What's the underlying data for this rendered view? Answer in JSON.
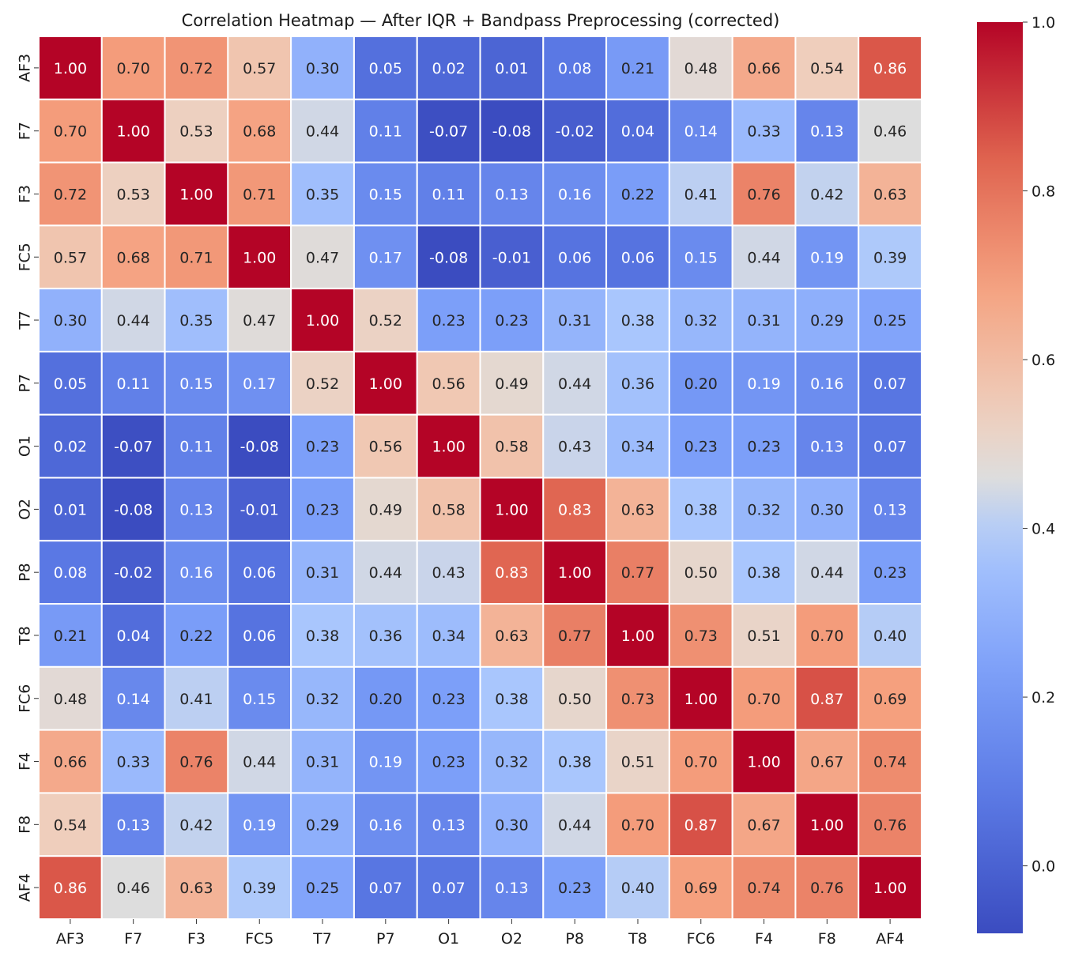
{
  "chart_data": {
    "type": "heatmap",
    "title": "Correlation Heatmap — After IQR + Bandpass Preprocessing (corrected)",
    "xlabel": "",
    "ylabel": "",
    "x_labels": [
      "AF3",
      "F7",
      "F3",
      "FC5",
      "T7",
      "P7",
      "O1",
      "O2",
      "P8",
      "T8",
      "FC6",
      "F4",
      "F8",
      "AF4"
    ],
    "y_labels": [
      "AF3",
      "F7",
      "F3",
      "FC5",
      "T7",
      "P7",
      "O1",
      "O2",
      "P8",
      "T8",
      "FC6",
      "F4",
      "F8",
      "AF4"
    ],
    "values": [
      [
        1.0,
        0.7,
        0.72,
        0.57,
        0.3,
        0.05,
        0.02,
        0.01,
        0.08,
        0.21,
        0.48,
        0.66,
        0.54,
        0.86
      ],
      [
        0.7,
        1.0,
        0.53,
        0.68,
        0.44,
        0.11,
        -0.07,
        -0.08,
        -0.02,
        0.04,
        0.14,
        0.33,
        0.13,
        0.46
      ],
      [
        0.72,
        0.53,
        1.0,
        0.71,
        0.35,
        0.15,
        0.11,
        0.13,
        0.16,
        0.22,
        0.41,
        0.76,
        0.42,
        0.63
      ],
      [
        0.57,
        0.68,
        0.71,
        1.0,
        0.47,
        0.17,
        -0.08,
        -0.01,
        0.06,
        0.06,
        0.15,
        0.44,
        0.19,
        0.39
      ],
      [
        0.3,
        0.44,
        0.35,
        0.47,
        1.0,
        0.52,
        0.23,
        0.23,
        0.31,
        0.38,
        0.32,
        0.31,
        0.29,
        0.25
      ],
      [
        0.05,
        0.11,
        0.15,
        0.17,
        0.52,
        1.0,
        0.56,
        0.49,
        0.44,
        0.36,
        0.2,
        0.19,
        0.16,
        0.07
      ],
      [
        0.02,
        -0.07,
        0.11,
        -0.08,
        0.23,
        0.56,
        1.0,
        0.58,
        0.43,
        0.34,
        0.23,
        0.23,
        0.13,
        0.07
      ],
      [
        0.01,
        -0.08,
        0.13,
        -0.01,
        0.23,
        0.49,
        0.58,
        1.0,
        0.83,
        0.63,
        0.38,
        0.32,
        0.3,
        0.13
      ],
      [
        0.08,
        -0.02,
        0.16,
        0.06,
        0.31,
        0.44,
        0.43,
        0.83,
        1.0,
        0.77,
        0.5,
        0.38,
        0.44,
        0.23
      ],
      [
        0.21,
        0.04,
        0.22,
        0.06,
        0.38,
        0.36,
        0.34,
        0.63,
        0.77,
        1.0,
        0.73,
        0.51,
        0.7,
        0.4
      ],
      [
        0.48,
        0.14,
        0.41,
        0.15,
        0.32,
        0.2,
        0.23,
        0.38,
        0.5,
        0.73,
        1.0,
        0.7,
        0.87,
        0.69
      ],
      [
        0.66,
        0.33,
        0.76,
        0.44,
        0.31,
        0.19,
        0.23,
        0.32,
        0.38,
        0.51,
        0.7,
        1.0,
        0.67,
        0.74
      ],
      [
        0.54,
        0.13,
        0.42,
        0.19,
        0.29,
        0.16,
        0.13,
        0.3,
        0.44,
        0.7,
        0.87,
        0.67,
        1.0,
        0.76
      ],
      [
        0.86,
        0.46,
        0.63,
        0.39,
        0.25,
        0.07,
        0.07,
        0.13,
        0.23,
        0.4,
        0.69,
        0.74,
        0.76,
        1.0
      ]
    ],
    "value_format": "0.00",
    "colormap": "coolwarm",
    "color_range": [
      -0.08,
      1.0
    ],
    "cell_border_color": "#ffffff",
    "colorbar": {
      "position": "right",
      "ticks": [
        0.0,
        0.2,
        0.4,
        0.6,
        0.8,
        1.0
      ],
      "tick_labels": [
        "0.0",
        "0.2",
        "0.4",
        "0.6",
        "0.8",
        "1.0"
      ]
    },
    "grid": false
  }
}
